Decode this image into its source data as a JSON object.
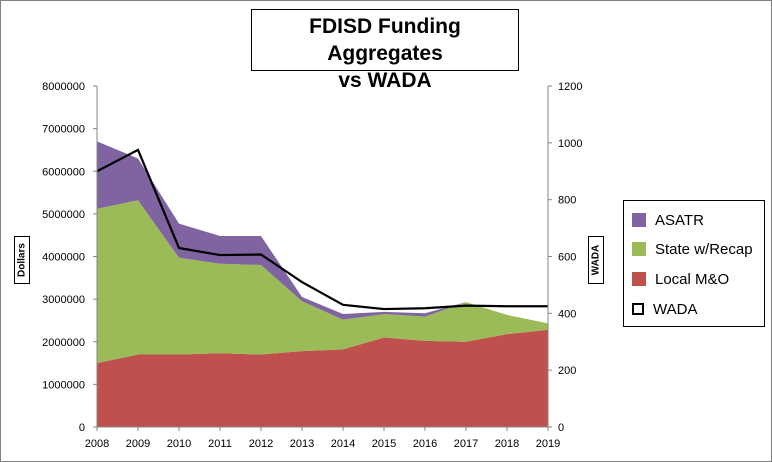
{
  "chart_data": {
    "type": "area",
    "title_line1": "FDISD Funding Aggregates",
    "title_line2": "vs WADA",
    "ylabel_left": "Dollars",
    "ylabel_right": "WADA",
    "x": [
      "2008",
      "2009",
      "2010",
      "2011",
      "2012",
      "2013",
      "2014",
      "2015",
      "2016",
      "2017",
      "2018",
      "2019"
    ],
    "ylim_left": [
      0,
      8000000
    ],
    "ylim_right": [
      0,
      1200
    ],
    "y_ticks_left": [
      "0",
      "1000000",
      "2000000",
      "3000000",
      "4000000",
      "5000000",
      "6000000",
      "7000000",
      "8000000"
    ],
    "y_ticks_right": [
      "0",
      "200",
      "400",
      "600",
      "800",
      "1000",
      "1200"
    ],
    "stacked": true,
    "series": [
      {
        "name": "Local M&O",
        "color": "#c0504d",
        "values": [
          1500000,
          1700000,
          1700000,
          1730000,
          1700000,
          1780000,
          1820000,
          2100000,
          2020000,
          2000000,
          2180000,
          2280000
        ]
      },
      {
        "name": "State w/Recap",
        "color": "#9bbb59",
        "values": [
          3620000,
          3620000,
          2270000,
          2100000,
          2100000,
          1170000,
          700000,
          550000,
          570000,
          930000,
          450000,
          150000
        ]
      },
      {
        "name": "ASATR",
        "color": "#8064a2",
        "values": [
          1580000,
          980000,
          800000,
          650000,
          680000,
          100000,
          130000,
          50000,
          80000,
          0,
          0,
          0
        ]
      }
    ],
    "line_series": {
      "name": "WADA",
      "axis": "right",
      "color": "#000000",
      "values": [
        900,
        975,
        630,
        605,
        607,
        510,
        430,
        415,
        418,
        427,
        425,
        425
      ]
    },
    "legend_entries": [
      "ASATR",
      "State w/Recap",
      "Local M&O",
      "WADA"
    ],
    "legend_position": "right",
    "grid": false
  }
}
